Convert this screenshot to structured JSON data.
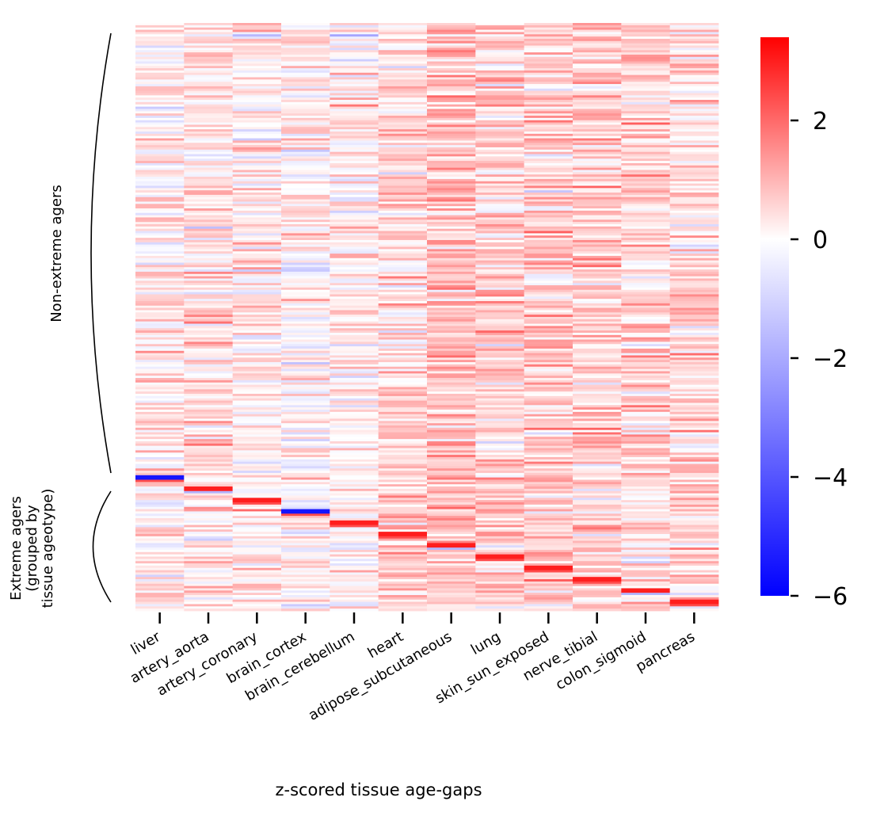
{
  "chart_data": {
    "type": "heatmap",
    "title": "",
    "xlabel": "z-scored tissue age-gaps",
    "ylabel": "",
    "columns": [
      "liver",
      "artery_aorta",
      "artery_coronary",
      "brain_cortex",
      "brain_cerebellum",
      "heart",
      "adipose_subcutaneous",
      "lung",
      "skin_sun_exposed",
      "nerve_tibial",
      "colon_sigmoid",
      "pancreas"
    ],
    "row_groups": [
      {
        "label": "Non-extreme agers",
        "row_fraction": 0.77
      },
      {
        "label": "Extreme agers\n(grouped by\ntissue ageotype)",
        "row_fraction": 0.23
      }
    ],
    "colorbar": {
      "colormap": "bwr",
      "vmin": -6.0,
      "vmax": 3.4,
      "ticks": [
        2,
        0,
        -2,
        -4,
        -6
      ],
      "tick_labels": [
        "2",
        "0",
        "−2",
        "−4",
        "−6"
      ],
      "colors": {
        "low": "#0000ff",
        "mid": "#ffffff",
        "high": "#ff0000"
      }
    },
    "column_mean_zscore": [
      0.2,
      0.4,
      0.2,
      0.1,
      0.1,
      0.5,
      0.8,
      0.6,
      0.7,
      0.6,
      0.5,
      0.4
    ],
    "extreme_block_column_order": [
      "liver",
      "artery_aorta",
      "artery_coronary",
      "brain_cortex",
      "brain_cerebellum",
      "heart",
      "adipose_subcutaneous",
      "lung",
      "skin_sun_exposed",
      "nerve_tibial",
      "colon_sigmoid",
      "pancreas"
    ],
    "n_rows": 260,
    "grid": false
  }
}
